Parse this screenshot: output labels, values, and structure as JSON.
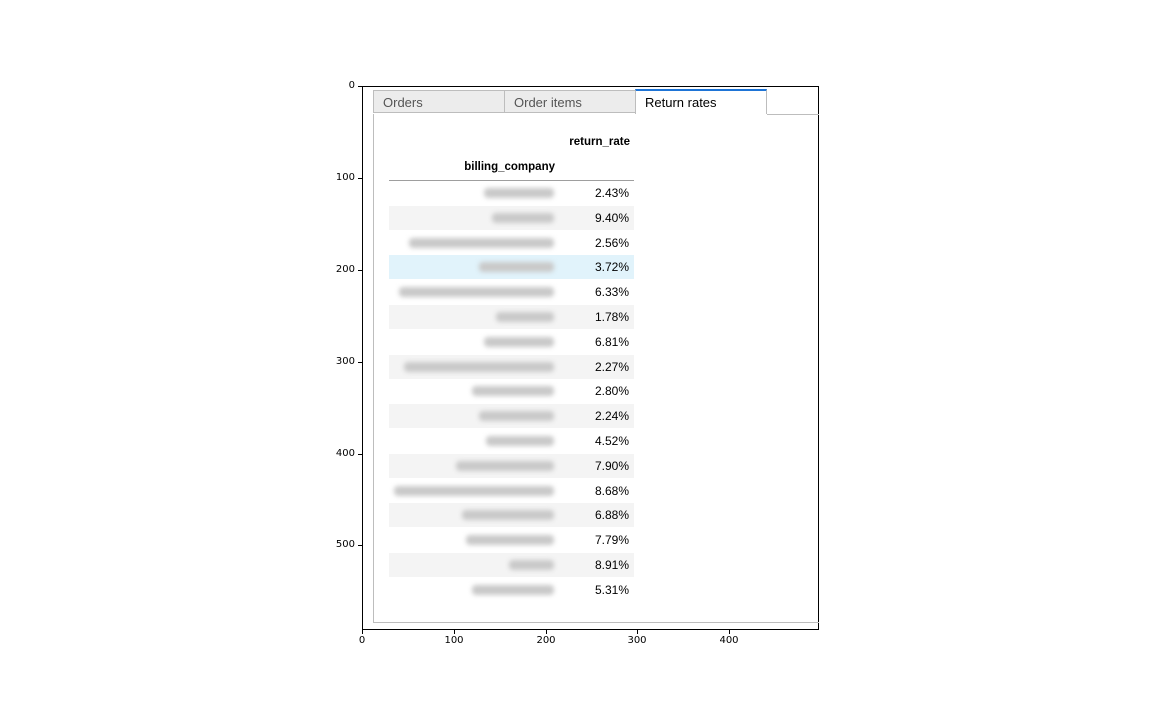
{
  "tabs": [
    {
      "label": "Orders",
      "active": false
    },
    {
      "label": "Order items",
      "active": false
    },
    {
      "label": "Return rates",
      "active": true
    }
  ],
  "table": {
    "column_header": "return_rate",
    "index_header": "billing_company",
    "selected_row": 3,
    "rows": [
      {
        "company": "",
        "rate": "2.43%"
      },
      {
        "company": "",
        "rate": "9.40%"
      },
      {
        "company": "",
        "rate": "2.56%"
      },
      {
        "company": "",
        "rate": "3.72%"
      },
      {
        "company": "",
        "rate": "6.33%"
      },
      {
        "company": "",
        "rate": "1.78%"
      },
      {
        "company": "",
        "rate": "6.81%"
      },
      {
        "company": "",
        "rate": "2.27%"
      },
      {
        "company": "",
        "rate": "2.80%"
      },
      {
        "company": "",
        "rate": "2.24%"
      },
      {
        "company": "",
        "rate": "4.52%"
      },
      {
        "company": "",
        "rate": "7.90%"
      },
      {
        "company": "",
        "rate": "8.68%"
      },
      {
        "company": "",
        "rate": "6.88%"
      },
      {
        "company": "",
        "rate": "7.79%"
      },
      {
        "company": "",
        "rate": "8.91%"
      },
      {
        "company": "",
        "rate": "5.31%"
      }
    ]
  },
  "axes": {
    "y_ticks": [
      "0",
      "100",
      "200",
      "300",
      "400",
      "500"
    ],
    "x_ticks": [
      "0",
      "100",
      "200",
      "300",
      "400"
    ]
  },
  "colors": {
    "active_tab_accent": "#1e74d6",
    "selected_row": "#e1f3fb",
    "stripe_row": "#f4f4f4"
  }
}
